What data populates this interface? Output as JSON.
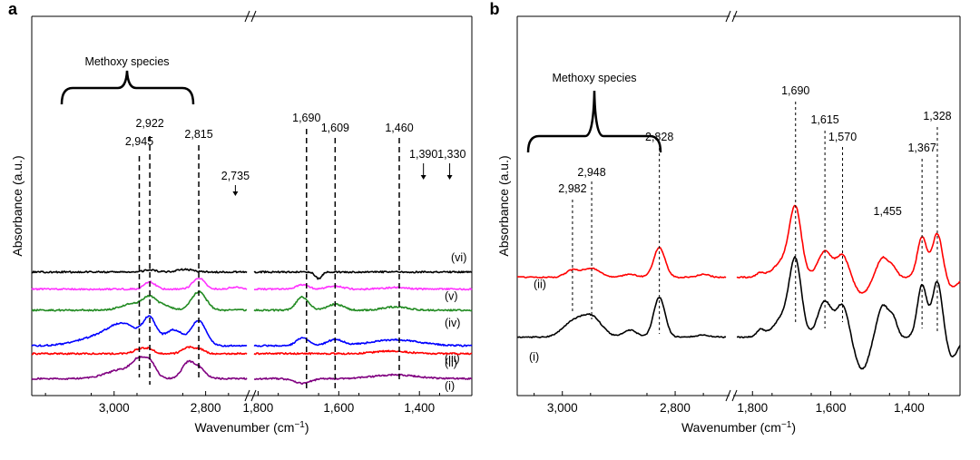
{
  "chart_data": [
    {
      "panel_label": "a",
      "type": "line",
      "xlabel_text": "Wavenumber (cm",
      "xlabel_sup": "−1",
      "xlabel_close": ")",
      "ylabel": "Absorbance (a.u.)",
      "x_reversed": true,
      "x_break": true,
      "xlim_left_segment": [
        3180,
        2710
      ],
      "xlim_right_segment": [
        1810,
        1270
      ],
      "xticks": [
        {
          "value": 3000,
          "label": "3,000"
        },
        {
          "value": 2800,
          "label": "2,800"
        },
        {
          "value": 1800,
          "label": "1,800"
        },
        {
          "value": 1600,
          "label": "1,600"
        },
        {
          "value": 1400,
          "label": "1,400"
        }
      ],
      "bracket_label": "Methoxy species",
      "peak_labels": [
        {
          "label": "2,945",
          "x": 2945,
          "line": "dashed"
        },
        {
          "label": "2,922",
          "x": 2922,
          "line": "dashed"
        },
        {
          "label": "2,815",
          "x": 2815,
          "line": "dashed"
        },
        {
          "label": "2,735",
          "x": 2735,
          "line": "arrow"
        },
        {
          "label": "1,690",
          "x": 1690,
          "line": "dashed"
        },
        {
          "label": "1,609",
          "x": 1609,
          "line": "dashed"
        },
        {
          "label": "1,460",
          "x": 1460,
          "line": "dashed"
        },
        {
          "label": "1,390",
          "x": 1390,
          "line": "arrow"
        },
        {
          "label": "1,330",
          "x": 1330,
          "line": "arrow"
        }
      ],
      "series": [
        {
          "name": "(vi)",
          "color": "#000000",
          "offset": 8.7,
          "peaks": [
            [
              2922,
              0.15,
              14
            ],
            [
              2845,
              0.2,
              18
            ],
            [
              1650,
              -0.5,
              8
            ]
          ]
        },
        {
          "name": "(v)",
          "color": "#ff33ff",
          "offset": 7.4,
          "peaks": [
            [
              2922,
              0.55,
              12
            ],
            [
              2815,
              0.85,
              13
            ],
            [
              2735,
              0.15,
              14
            ],
            [
              1690,
              0.35,
              15
            ],
            [
              1609,
              0.22,
              20
            ],
            [
              1460,
              0.12,
              30
            ]
          ]
        },
        {
          "name": "(iv)",
          "color": "#228b22",
          "offset": 5.8,
          "peaks": [
            [
              2960,
              0.5,
              25
            ],
            [
              2922,
              0.9,
              14
            ],
            [
              2890,
              0.35,
              15
            ],
            [
              2815,
              1.4,
              16
            ],
            [
              1690,
              1.0,
              15
            ],
            [
              1609,
              0.45,
              20
            ],
            [
              1460,
              0.25,
              30
            ]
          ]
        },
        {
          "name": "(iii)",
          "color": "#0000ff",
          "offset": 3.1,
          "peaks": [
            [
              3050,
              0.5,
              40
            ],
            [
              2980,
              1.6,
              35
            ],
            [
              2922,
              1.8,
              14
            ],
            [
              2870,
              1.2,
              20
            ],
            [
              2815,
              1.9,
              16
            ],
            [
              1690,
              0.6,
              15
            ],
            [
              1609,
              0.45,
              20
            ],
            [
              1460,
              0.45,
              60
            ]
          ]
        },
        {
          "name": "(ii)",
          "color": "#ff0000",
          "offset": 2.5,
          "peaks": [
            [
              2945,
              0.35,
              12
            ],
            [
              2922,
              0.35,
              10
            ],
            [
              2840,
              0.45,
              12
            ],
            [
              2815,
              0.35,
              12
            ],
            [
              1470,
              0.2,
              40
            ]
          ]
        },
        {
          "name": "(i)",
          "color": "#800080",
          "offset": 0.6,
          "peaks": [
            [
              2980,
              0.7,
              35
            ],
            [
              2945,
              1.1,
              15
            ],
            [
              2920,
              1.0,
              12
            ],
            [
              2840,
              1.1,
              13
            ],
            [
              2815,
              0.8,
              14
            ],
            [
              1690,
              -0.35,
              20
            ],
            [
              1460,
              0.3,
              50
            ]
          ]
        }
      ]
    },
    {
      "panel_label": "b",
      "type": "line",
      "xlabel_text": "Wavenumber (cm",
      "xlabel_sup": "−1",
      "xlabel_close": ")",
      "ylabel": "Absorbance (a.u.)",
      "x_reversed": true,
      "x_break": true,
      "xlim_left_segment": [
        3080,
        2710
      ],
      "xlim_right_segment": [
        1840,
        1270
      ],
      "xticks": [
        {
          "value": 3000,
          "label": "3,000"
        },
        {
          "value": 2800,
          "label": "2,800"
        },
        {
          "value": 1800,
          "label": "1,800"
        },
        {
          "value": 1600,
          "label": "1,600"
        },
        {
          "value": 1400,
          "label": "1,400"
        }
      ],
      "bracket_label": "Methoxy species",
      "peak_labels": [
        {
          "label": "2,982",
          "x": 2982
        },
        {
          "label": "2,948",
          "x": 2948
        },
        {
          "label": "2,828",
          "x": 2828
        },
        {
          "label": "1,690",
          "x": 1690
        },
        {
          "label": "1,615",
          "x": 1615
        },
        {
          "label": "1,570",
          "x": 1570
        },
        {
          "label": "1,455",
          "x": 1455
        },
        {
          "label": "1,367",
          "x": 1367
        },
        {
          "label": "1,328",
          "x": 1328
        }
      ],
      "series": [
        {
          "name": "(ii)",
          "color": "#ff0000",
          "offset": 5.2,
          "peaks": [
            [
              2982,
              0.35,
              12
            ],
            [
              2948,
              0.45,
              15
            ],
            [
              2880,
              0.15,
              12
            ],
            [
              2828,
              1.5,
              10
            ],
            [
              2750,
              0.15,
              10
            ],
            [
              1780,
              0.2,
              10
            ],
            [
              1720,
              0.8,
              25
            ],
            [
              1690,
              3.2,
              15
            ],
            [
              1615,
              1.3,
              18
            ],
            [
              1570,
              1.1,
              15
            ],
            [
              1520,
              -0.8,
              18
            ],
            [
              1467,
              1.0,
              15
            ],
            [
              1440,
              0.4,
              10
            ],
            [
              1367,
              2.0,
              12
            ],
            [
              1328,
              2.2,
              13
            ],
            [
              1290,
              -0.5,
              15
            ]
          ]
        },
        {
          "name": "(i)",
          "color": "#000000",
          "offset": 2.2,
          "peaks": [
            [
              2982,
              0.7,
              18
            ],
            [
              2948,
              1.0,
              18
            ],
            [
              2880,
              0.35,
              12
            ],
            [
              2828,
              2.0,
              10
            ],
            [
              2750,
              0.1,
              12
            ],
            [
              1780,
              0.35,
              10
            ],
            [
              1720,
              1.0,
              25
            ],
            [
              1690,
              3.5,
              15
            ],
            [
              1615,
              1.8,
              18
            ],
            [
              1570,
              1.6,
              15
            ],
            [
              1520,
              -1.6,
              18
            ],
            [
              1467,
              1.6,
              15
            ],
            [
              1440,
              0.8,
              10
            ],
            [
              1367,
              2.6,
              12
            ],
            [
              1328,
              2.8,
              13
            ],
            [
              1290,
              -1.0,
              15
            ]
          ]
        }
      ]
    }
  ]
}
